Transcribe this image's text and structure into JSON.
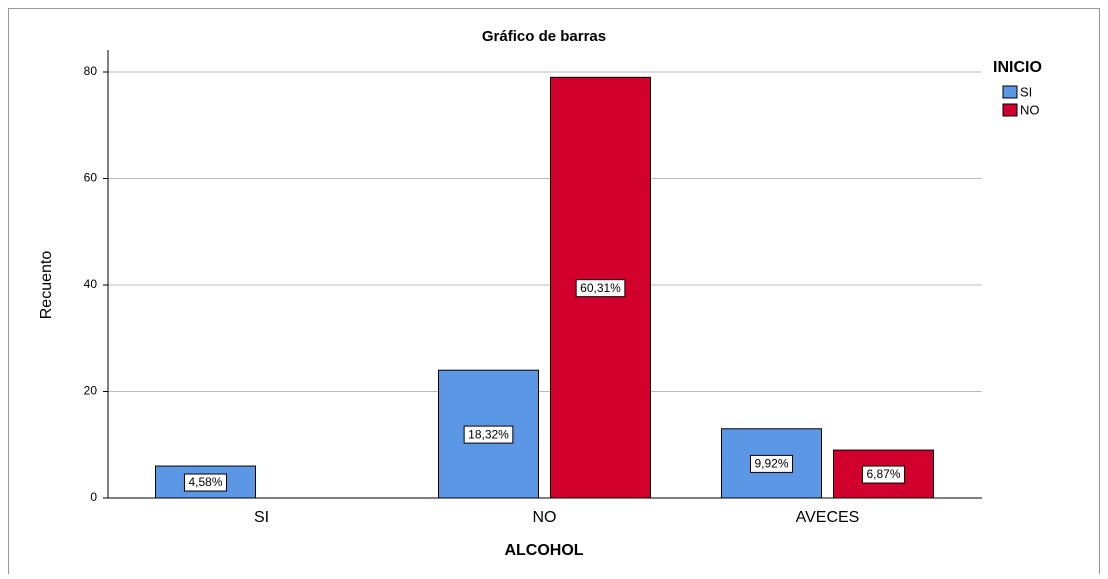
{
  "chart_data": {
    "type": "bar",
    "title": "Gráfico de barras",
    "x_label": "ALCOHOL",
    "y_label": "Recuento",
    "legend_title": "INICIO",
    "legend_position": "right",
    "categories": [
      "SI",
      "NO",
      "AVECES"
    ],
    "series": [
      {
        "name": "SI",
        "color": "#5b97e5",
        "values": [
          6,
          24,
          13
        ],
        "value_labels": [
          "4,58%",
          "18,32%",
          "9,92%"
        ]
      },
      {
        "name": "NO",
        "color": "#d2002c",
        "values": [
          null,
          79,
          9
        ],
        "value_labels": [
          null,
          "60,31%",
          "6,87%"
        ]
      }
    ],
    "ylim": [
      0,
      80
    ],
    "yticks": [
      0,
      20,
      40,
      60,
      80
    ],
    "grid": true
  }
}
